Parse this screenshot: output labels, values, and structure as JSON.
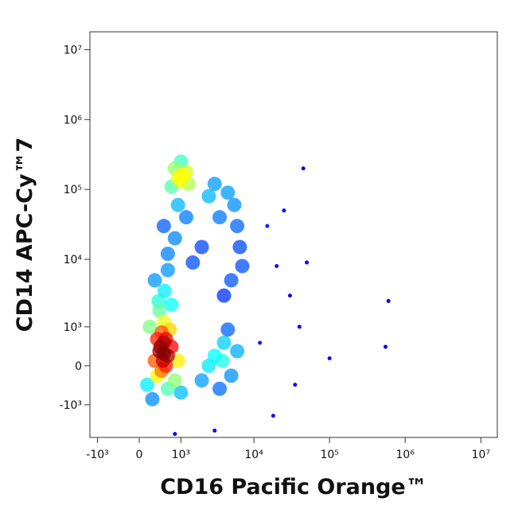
{
  "chart_data": {
    "type": "scatter",
    "scale": "biexponential",
    "x_label": "CD16 Pacific Orange™",
    "y_label": "CD14 APC-Cy™7",
    "xlim": [
      -1300,
      16500000
    ],
    "ylim": [
      -3150,
      18000000
    ],
    "xticks": [
      {
        "value": -1000,
        "label": "-10³"
      },
      0,
      {
        "value": 1000,
        "label": "10³"
      },
      {
        "value": 10000,
        "label": "10⁴"
      },
      {
        "value": 100000,
        "label": "10⁵"
      },
      {
        "value": 1000000,
        "label": "10⁶"
      },
      {
        "value": 10000000,
        "label": "10⁷"
      }
    ],
    "yticks": [
      {
        "value": -1000,
        "label": "-10³"
      },
      0,
      {
        "value": 1000,
        "label": "10³"
      },
      {
        "value": 10000,
        "label": "10⁴"
      },
      {
        "value": 100000,
        "label": "10⁵"
      },
      {
        "value": 1000000,
        "label": "10⁶"
      },
      {
        "value": 10000000,
        "label": "10⁷"
      }
    ],
    "x": [
      400,
      500,
      600,
      450,
      350,
      550,
      300,
      700,
      500,
      400,
      600,
      250,
      800,
      650,
      350,
      450,
      500,
      550,
      420,
      480,
      380,
      520,
      300,
      600,
      700,
      200,
      150,
      900,
      1000,
      900,
      1100,
      1000,
      1200,
      800,
      1300,
      1000,
      700,
      600,
      800,
      500,
      1200,
      900,
      1500,
      2000,
      3000,
      4500,
      5500,
      6000,
      6500,
      7000,
      5000,
      4000,
      3500,
      2500,
      3000,
      4000,
      5000,
      3500,
      4500,
      2500,
      6000,
      2000,
      3800,
      20000,
      30000,
      25000,
      40000,
      15000,
      50000,
      35000,
      45000,
      100000,
      600000,
      550000,
      12000,
      18000,
      3000,
      800
    ],
    "y": [
      300,
      500,
      200,
      800,
      -200,
      0,
      100,
      400,
      1200,
      1800,
      -500,
      -800,
      -300,
      900,
      600,
      -100,
      250,
      600,
      400,
      100,
      2500,
      3500,
      5000,
      7000,
      2200,
      1000,
      -400,
      100,
      -600,
      150000,
      160000,
      130000,
      180000,
      200000,
      120000,
      250000,
      110000,
      12000,
      20000,
      30000,
      40000,
      60000,
      9000,
      15000,
      120000,
      90000,
      60000,
      30000,
      15000,
      8000,
      5000,
      3000,
      40000,
      80000,
      200,
      500,
      -200,
      -500,
      900,
      0,
      300,
      -300,
      100,
      8000,
      3000,
      50000,
      1000,
      30000,
      9000,
      -400,
      200000,
      150,
      2500,
      400,
      500,
      -1500,
      -2500,
      -2800
    ]
  }
}
